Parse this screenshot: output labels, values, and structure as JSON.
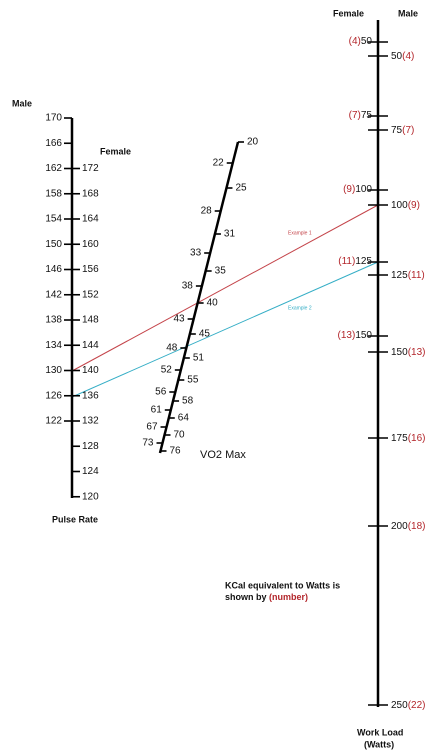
{
  "pulse_scale": {
    "male_heading": "Male",
    "female_heading": "Female",
    "male": [
      170,
      166,
      162,
      158,
      154,
      150,
      146,
      142,
      138,
      134,
      130,
      126,
      122
    ],
    "female": [
      172,
      168,
      164,
      160,
      156,
      152,
      148,
      144,
      140,
      136,
      132,
      128,
      124,
      120
    ],
    "caption": "Pulse Rate"
  },
  "vo2_scale": {
    "left": [
      22,
      28,
      33,
      38,
      43,
      48,
      52,
      56,
      61,
      67,
      73
    ],
    "right": [
      20,
      25,
      31,
      35,
      40,
      45,
      51,
      55,
      58,
      64,
      70,
      76
    ],
    "caption": "VO2 Max"
  },
  "workload_scale": {
    "female_heading": "Female",
    "male_heading": "Male",
    "female": [
      {
        "kcal": "(4)",
        "watts": 50
      },
      {
        "kcal": "(7)",
        "watts": 75
      },
      {
        "kcal": "(9)",
        "watts": 100
      },
      {
        "kcal": "(11)",
        "watts": 125
      },
      {
        "kcal": "(13)",
        "watts": 150
      }
    ],
    "male": [
      {
        "watts": 50,
        "kcal": "(4)"
      },
      {
        "watts": 75,
        "kcal": "(7)"
      },
      {
        "watts": 100,
        "kcal": "(9)"
      },
      {
        "watts": 125,
        "kcal": "(11)"
      },
      {
        "watts": 150,
        "kcal": "(13)"
      },
      {
        "watts": 175,
        "kcal": "(16)"
      },
      {
        "watts": 200,
        "kcal": "(18)"
      },
      {
        "watts": 250,
        "kcal": "(22)"
      }
    ],
    "caption_line1": "Work Load",
    "caption_line2": "(Watts)"
  },
  "examples": [
    {
      "label": "Example 1"
    },
    {
      "label": "Example 2"
    }
  ],
  "note": {
    "line1": "KCal equivalent to Watts is",
    "line2": "shown by",
    "highlight": "(number)"
  }
}
